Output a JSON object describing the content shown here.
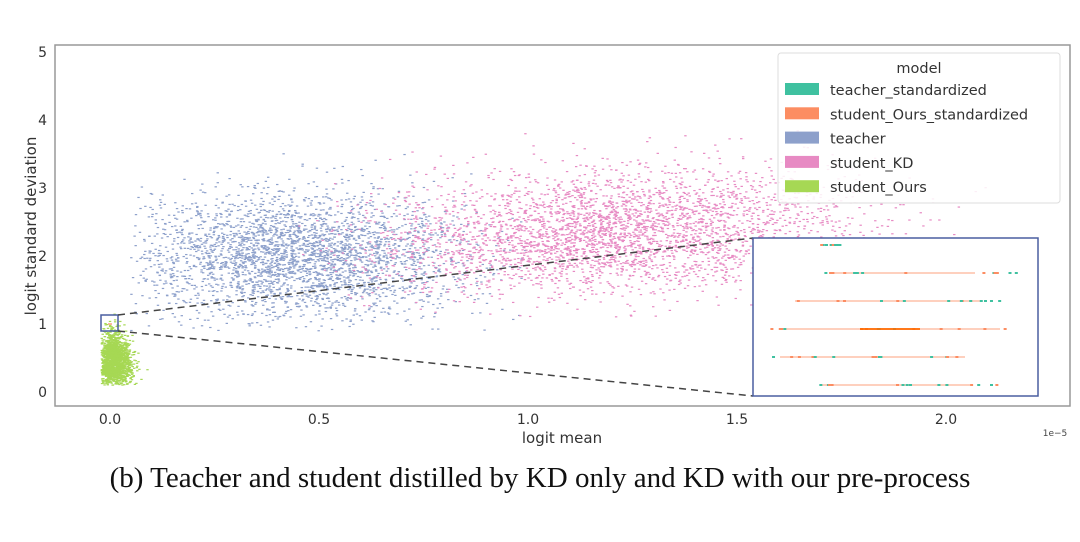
{
  "caption": "(b) Teacher and student distilled by KD only and KD with our pre-process",
  "chart_data": {
    "type": "scatter",
    "xlabel": "logit mean",
    "ylabel": "logit standard deviation",
    "x_offset_label": "1e−5",
    "xlim": [
      -0.13,
      2.25
    ],
    "ylim": [
      -0.2,
      5.05
    ],
    "xticks": [
      "0.0",
      "0.5",
      "1.0",
      "1.5",
      "2.0"
    ],
    "yticks": [
      "0",
      "1",
      "2",
      "3",
      "4",
      "5"
    ],
    "grid": false,
    "legend": {
      "title": "model",
      "placement": "top-right",
      "entries": [
        {
          "label": "teacher_standardized",
          "color": "#3fc1a0"
        },
        {
          "label": "student_Ours_standardized",
          "color": "#fc8d62"
        },
        {
          "label": "teacher",
          "color": "#8da0cb"
        },
        {
          "label": "student_KD",
          "color": "#e78ac3"
        },
        {
          "label": "student_Ours",
          "color": "#a6d854"
        }
      ]
    },
    "series": [
      {
        "name": "teacher",
        "color": "#8da0cb",
        "cluster_center": [
          0.45,
          2.0
        ],
        "spread": [
          0.2,
          0.45
        ],
        "x_range": [
          0.05,
          1.0
        ],
        "y_range": [
          0.9,
          4.0
        ]
      },
      {
        "name": "student_KD",
        "color": "#e78ac3",
        "cluster_center": [
          1.2,
          2.35
        ],
        "spread": [
          0.28,
          0.45
        ],
        "x_range": [
          0.45,
          2.2
        ],
        "y_range": [
          1.1,
          4.8
        ]
      },
      {
        "name": "student_Ours",
        "color": "#a6d854",
        "cluster_center": [
          0.01,
          0.45
        ],
        "spread": [
          0.015,
          0.2
        ],
        "x_range": [
          -0.02,
          0.15
        ],
        "y_range": [
          0.1,
          1.2
        ]
      },
      {
        "name": "teacher_standardized",
        "color": "#3fc1a0",
        "cluster_center": [
          0.0,
          1.0
        ]
      },
      {
        "name": "student_Ours_standardized",
        "color": "#fc8d62",
        "cluster_center": [
          0.0,
          1.0
        ]
      }
    ],
    "zoom_inset": {
      "x_range": [
        -0.02,
        0.02
      ],
      "y_range": [
        0.88,
        1.12
      ]
    }
  }
}
